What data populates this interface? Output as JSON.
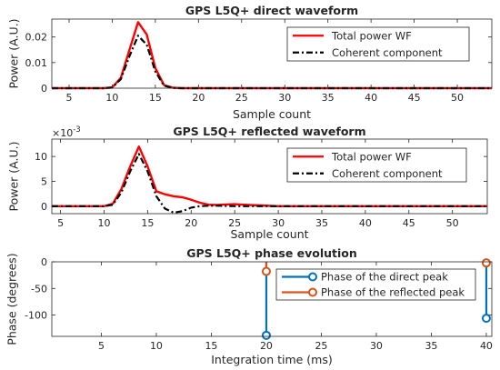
{
  "chart_data": [
    {
      "type": "line",
      "title": "GPS L5Q+ direct waveform",
      "xlabel": "Sample count",
      "ylabel": "Power (A.U.)",
      "xlim": [
        3,
        54
      ],
      "ylim": [
        0,
        0.027
      ],
      "xticks": [
        5,
        10,
        15,
        20,
        25,
        30,
        35,
        40,
        45,
        50
      ],
      "yticks": [
        0,
        0.01,
        0.02
      ],
      "ytick_labels": [
        "0",
        "0.01",
        "0.02"
      ],
      "y_exponent": "",
      "legend_position": "top-right",
      "series": [
        {
          "name": "Total power WF",
          "color": "#ff0000",
          "style": "solid",
          "x": [
            3,
            4,
            5,
            6,
            7,
            8,
            9,
            10,
            11,
            12,
            13,
            14,
            15,
            16,
            17,
            18,
            19,
            20,
            22,
            25,
            30,
            35,
            40,
            45,
            50,
            54
          ],
          "y": [
            0,
            0,
            0,
            0,
            0,
            0,
            0,
            0.0003,
            0.004,
            0.015,
            0.0258,
            0.021,
            0.0078,
            0.0012,
            0.0002,
            0,
            0,
            0,
            0,
            0,
            0,
            0,
            0,
            0,
            0,
            0
          ]
        },
        {
          "name": "Coherent component",
          "color": "#000000",
          "style": "dashdot",
          "x": [
            3,
            4,
            5,
            6,
            7,
            8,
            9,
            10,
            11,
            12,
            13,
            14,
            15,
            16,
            17,
            18,
            19,
            20,
            22,
            25,
            30,
            35,
            40,
            45,
            50,
            54
          ],
          "y": [
            0,
            0,
            0,
            0,
            0,
            0,
            0,
            0.0002,
            0.0035,
            0.0125,
            0.0205,
            0.017,
            0.0065,
            0.001,
            0.0001,
            0,
            0,
            0,
            0,
            0,
            0,
            0,
            0,
            0,
            0,
            0
          ]
        }
      ]
    },
    {
      "type": "line",
      "title": "GPS L5Q+ reflected waveform",
      "xlabel": "Sample count",
      "ylabel": "Power (A.U.)",
      "xlim": [
        4,
        54
      ],
      "ylim": [
        -1.5,
        13.5
      ],
      "xticks": [
        5,
        10,
        15,
        20,
        25,
        30,
        35,
        40,
        45,
        50
      ],
      "yticks": [
        0,
        5,
        10
      ],
      "ytick_labels": [
        "0",
        "5",
        "10"
      ],
      "y_exponent": "×10",
      "y_exponent_power": "-3",
      "legend_position": "top-right",
      "series": [
        {
          "name": "Total power WF",
          "color": "#ff0000",
          "style": "solid",
          "x": [
            4,
            6,
            8,
            10,
            11,
            12,
            13,
            14,
            15,
            16,
            17,
            18,
            19,
            20,
            21,
            22,
            23,
            24,
            25,
            26,
            28,
            30,
            35,
            40,
            45,
            50,
            54
          ],
          "y": [
            0,
            0,
            0,
            0,
            0.5,
            3.5,
            8,
            12,
            8,
            3,
            2.4,
            2,
            1.8,
            1.3,
            0.7,
            0.3,
            0.25,
            0.35,
            0.4,
            0.3,
            0.15,
            0,
            0,
            0,
            0,
            0,
            0
          ]
        },
        {
          "name": "Coherent component",
          "color": "#000000",
          "style": "dashdot",
          "x": [
            4,
            6,
            8,
            10,
            11,
            12,
            13,
            14,
            15,
            16,
            17,
            18,
            19,
            20,
            21,
            22,
            23,
            24,
            25,
            26,
            28,
            30,
            35,
            40,
            45,
            50,
            54
          ],
          "y": [
            0,
            0,
            0,
            0,
            0.3,
            2.8,
            7,
            10.5,
            7,
            2,
            -0.5,
            -1.3,
            -1,
            -0.3,
            0,
            0.1,
            0.1,
            0.05,
            0,
            0,
            0,
            0,
            0,
            0,
            0,
            0,
            0
          ]
        }
      ]
    },
    {
      "type": "stem",
      "title": "GPS L5Q+ phase evolution",
      "xlabel": "Integration time (ms)",
      "ylabel": "Phase (degrees)",
      "xlim": [
        0.5,
        40.5
      ],
      "ylim": [
        -140,
        0
      ],
      "xticks": [
        5,
        10,
        15,
        20,
        25,
        30,
        35,
        40
      ],
      "yticks": [
        0,
        -50,
        -100
      ],
      "ytick_labels": [
        "0",
        "-50",
        "-100"
      ],
      "y_exponent": "",
      "legend_position": "top-right",
      "series": [
        {
          "name": "Phase of the direct peak",
          "color": "#0072bd",
          "x": [
            20,
            40
          ],
          "y": [
            -138,
            -106
          ]
        },
        {
          "name": "Phase of the reflected peak",
          "color": "#d95319",
          "x": [
            20,
            40
          ],
          "y": [
            -18,
            -2
          ]
        }
      ]
    }
  ]
}
